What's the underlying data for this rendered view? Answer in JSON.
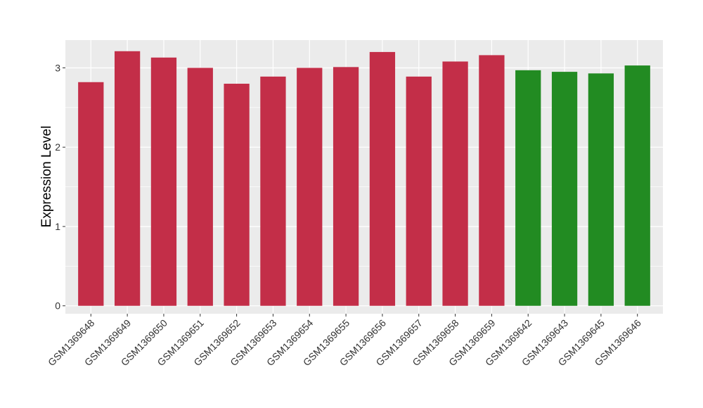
{
  "chart_data": {
    "type": "bar",
    "title": "",
    "xlabel": "",
    "ylabel": "Expression Level",
    "ylim": [
      -0.1,
      3.35
    ],
    "yticks": [
      0,
      1,
      2,
      3
    ],
    "grid": true,
    "categories": [
      "GSM1369648",
      "GSM1369649",
      "GSM1369650",
      "GSM1369651",
      "GSM1369652",
      "GSM1369653",
      "GSM1369654",
      "GSM1369655",
      "GSM1369656",
      "GSM1369657",
      "GSM1369658",
      "GSM1369659",
      "GSM1369642",
      "GSM1369643",
      "GSM1369645",
      "GSM1369646"
    ],
    "values": [
      2.82,
      3.21,
      3.13,
      3.0,
      2.8,
      2.89,
      3.0,
      3.01,
      3.2,
      2.89,
      3.08,
      3.16,
      2.97,
      2.95,
      2.93,
      3.03
    ],
    "colors": [
      "#C32E48",
      "#C32E48",
      "#C32E48",
      "#C32E48",
      "#C32E48",
      "#C32E48",
      "#C32E48",
      "#C32E48",
      "#C32E48",
      "#C32E48",
      "#C32E48",
      "#C32E48",
      "#228B22",
      "#228B22",
      "#228B22",
      "#228B22"
    ],
    "panel_background": "#EBEBEB",
    "gridline_color": "#FFFFFF"
  }
}
